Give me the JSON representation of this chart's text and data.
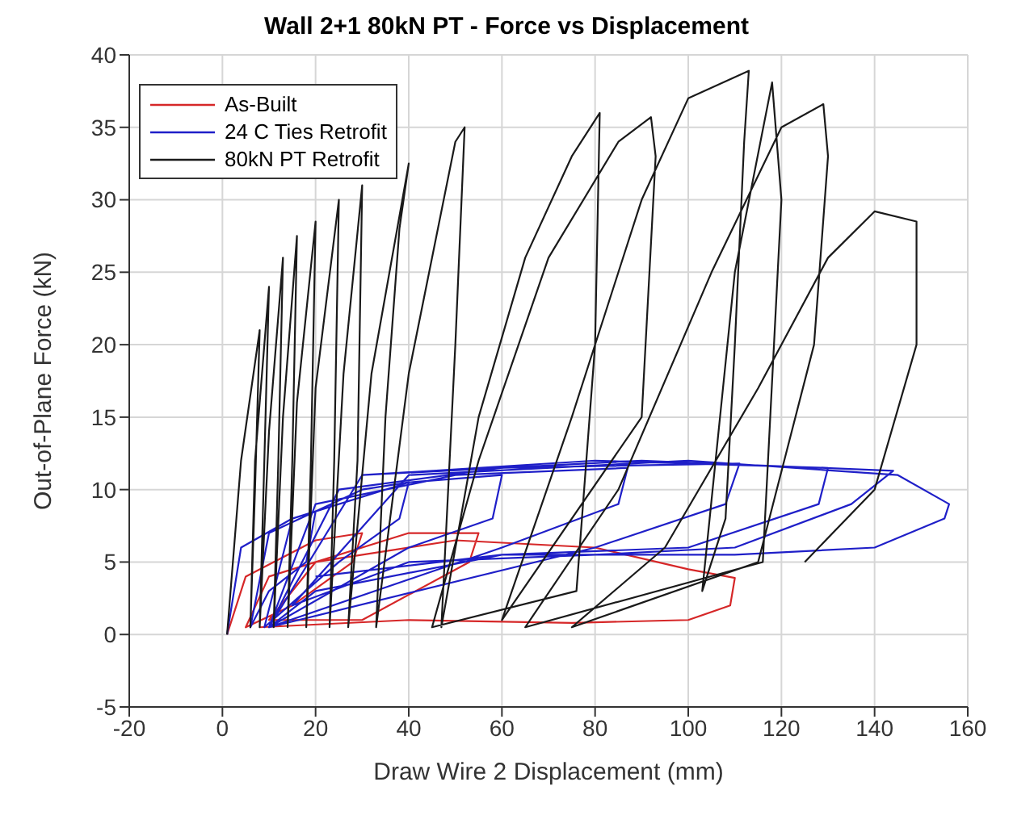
{
  "chart_data": {
    "type": "line",
    "title": "Wall 2+1 80kN PT - Force vs Displacement",
    "xlabel": "Draw Wire 2 Displacement (mm)",
    "ylabel": "Out-of-Plane Force (kN)",
    "xlim": [
      -20,
      160
    ],
    "xticks": [
      -20,
      0,
      20,
      40,
      60,
      80,
      100,
      120,
      140,
      160
    ],
    "ylim": [
      -5,
      40
    ],
    "yticks": [
      -5,
      0,
      5,
      10,
      15,
      20,
      25,
      30,
      35,
      40
    ],
    "grid": true,
    "legend": "top left",
    "marker": "none",
    "line_style": "solid",
    "series": [
      {
        "name": "As-Built",
        "color": "#d62728",
        "x": [
          1,
          5,
          20,
          30,
          28,
          15,
          5,
          10,
          40,
          55,
          53,
          30,
          10,
          20,
          50,
          80,
          100,
          110,
          109,
          100,
          75,
          40,
          8
        ],
        "values": [
          0,
          4,
          6.5,
          7,
          5,
          2,
          0.5,
          4,
          7,
          7,
          5,
          1,
          1,
          5,
          6.5,
          6,
          4.5,
          3.9,
          2,
          1,
          0.8,
          1,
          0.5
        ]
      },
      {
        "name": "24 C Ties Retrofit",
        "color": "#1f1fc8",
        "x": [
          1,
          4,
          15,
          20,
          18,
          10,
          6,
          10,
          30,
          40,
          38,
          25,
          9,
          15,
          40,
          60,
          58,
          40,
          10,
          20,
          50,
          87,
          85,
          60,
          10,
          25,
          60,
          111,
          108,
          80,
          10,
          30,
          80,
          130,
          128,
          100,
          60,
          20,
          10,
          30,
          90,
          144,
          135,
          110,
          80,
          40,
          15,
          40,
          100,
          145,
          156,
          155,
          140,
          110,
          60,
          20
        ],
        "values": [
          0,
          6,
          8,
          8.5,
          5,
          3,
          0.5,
          7,
          10,
          10.5,
          8,
          5,
          0.5,
          8,
          10.5,
          11,
          8,
          6,
          0.5,
          9,
          11,
          11.5,
          9,
          6,
          0.5,
          10,
          11.5,
          11.8,
          9,
          6,
          0.5,
          11,
          12,
          11.5,
          9,
          6,
          5.5,
          3,
          0.5,
          11,
          12,
          11.3,
          9,
          6,
          5.5,
          5,
          2,
          11,
          12,
          11,
          9,
          8,
          6,
          5.5,
          5.5,
          4
        ]
      },
      {
        "name": "80kN PT Retrofit",
        "color": "#1a1a1a",
        "x": [
          1,
          4,
          8,
          7,
          6,
          7,
          10,
          9,
          8,
          10,
          13,
          12,
          11,
          13,
          16,
          15,
          14,
          16,
          20,
          19,
          18,
          20,
          25,
          24,
          23,
          26,
          30,
          29,
          27,
          32,
          40,
          38,
          35,
          33,
          40,
          50,
          52,
          50,
          47,
          55,
          65,
          75,
          81,
          80,
          76,
          45,
          55,
          70,
          85,
          92,
          93,
          90,
          60,
          75,
          90,
          100,
          113,
          112,
          110,
          108,
          103,
          110,
          118,
          120,
          116,
          65,
          85,
          105,
          120,
          129,
          130,
          127,
          115,
          75,
          95,
          115,
          130,
          140,
          149,
          149,
          140,
          125
        ],
        "values": [
          0,
          12,
          21,
          10,
          0.5,
          12,
          24,
          12,
          0.5,
          14,
          26,
          12,
          0.5,
          15,
          27.5,
          12,
          0.5,
          16,
          28.5,
          12,
          0.5,
          17,
          30,
          12,
          0.5,
          18,
          31,
          12,
          0.5,
          18,
          32.5,
          28,
          15,
          0.5,
          18,
          34,
          35,
          20,
          0.5,
          15,
          26,
          33,
          36,
          20,
          3,
          0.5,
          12,
          26,
          34,
          35.7,
          33,
          15,
          1,
          15,
          30,
          37,
          38.9,
          34,
          20,
          8,
          3,
          25,
          38.1,
          30,
          5,
          0.5,
          10,
          25,
          35,
          36.6,
          33,
          20,
          5,
          0.5,
          6,
          17,
          26,
          29.2,
          28.5,
          20,
          10,
          5
        ]
      }
    ]
  }
}
